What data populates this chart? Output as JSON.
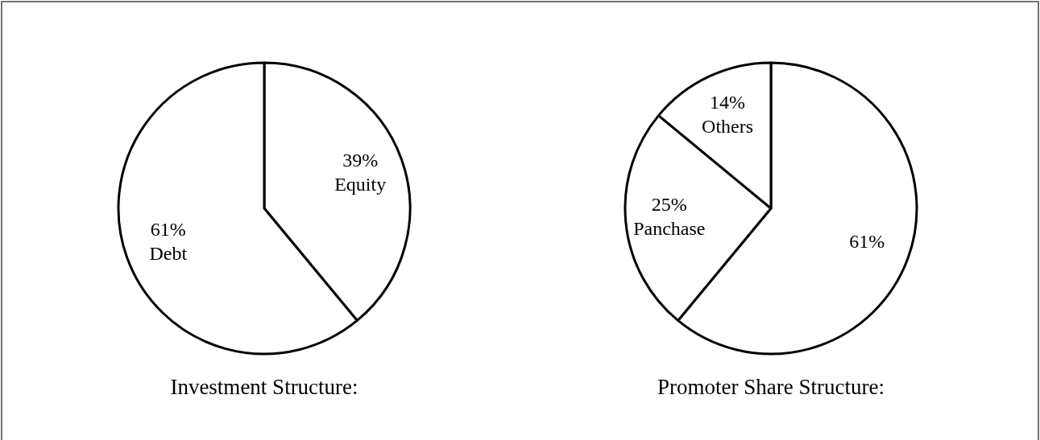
{
  "chart_data": [
    {
      "type": "pie",
      "title": "Investment Structure:",
      "categories": [
        "Equity",
        "Debt"
      ],
      "values": [
        39,
        61
      ],
      "value_labels": [
        "39%",
        "61%"
      ],
      "colors": [
        "#ffffff",
        "#ffffff"
      ]
    },
    {
      "type": "pie",
      "title": "Promoter Share Structure:",
      "categories": [
        null,
        "Panchase",
        "Others"
      ],
      "values": [
        61,
        25,
        14
      ],
      "value_labels": [
        "61%",
        "25%",
        "14%"
      ],
      "colors": [
        "#ffffff",
        "#ffffff",
        "#ffffff"
      ]
    }
  ]
}
